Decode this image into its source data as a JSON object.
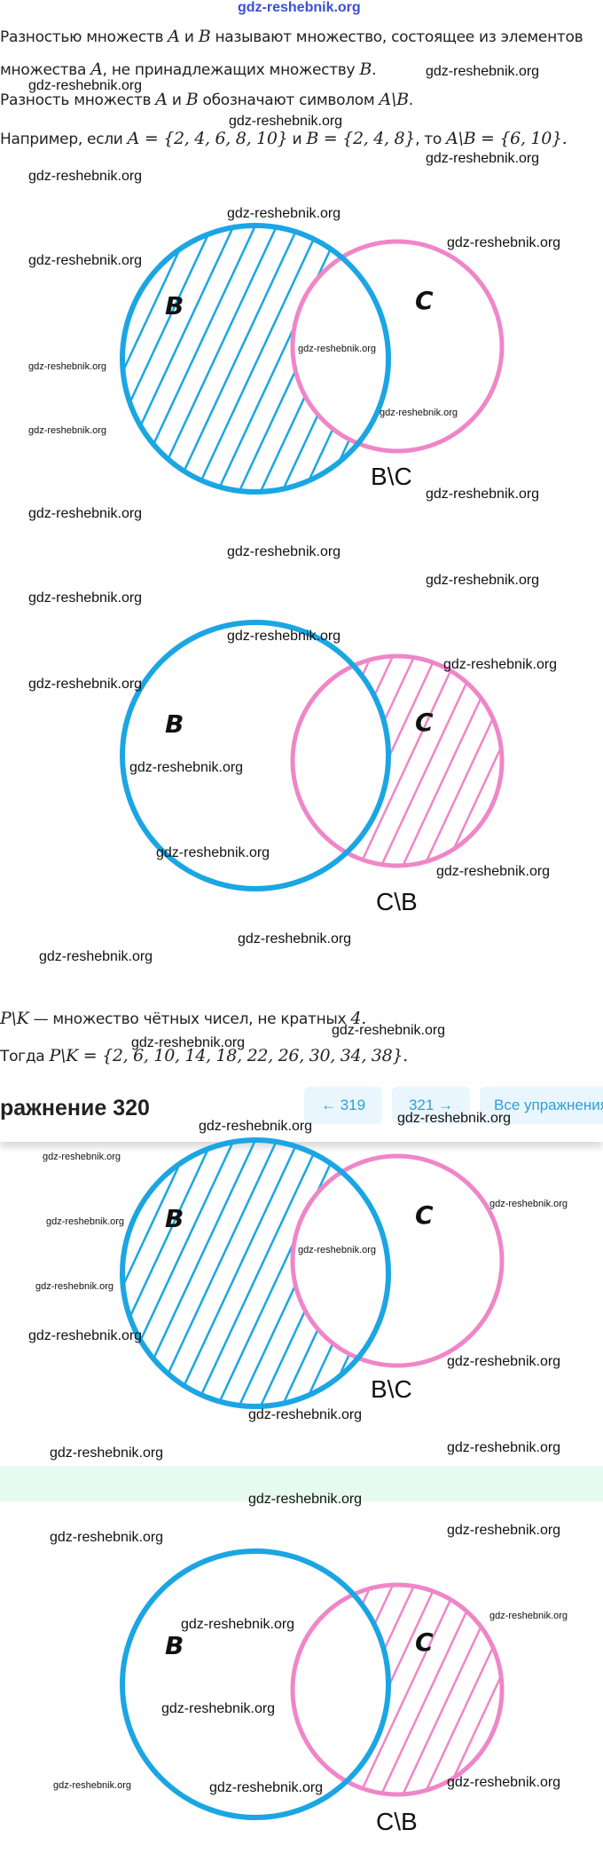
{
  "watermark": "gdz-reshebnik.org",
  "theory": {
    "line1_a": "Разностью множеств ",
    "A": "A",
    "and": " и ",
    "B": "B",
    "line1_b": " называют множество, состоящее из элементов",
    "line2_a": "множества ",
    "line2_b": ", не принадлежащих множеству ",
    "dot": ".",
    "line3_a": "Разность множеств ",
    "line3_b": " обозначают символом ",
    "AminusB": "A\\B",
    "line4_a": "Например, если ",
    "setA": "A = {2, 4, 6, 8, 10}",
    "setB": "B = {2, 4, 8}",
    "then": ", то ",
    "result": "A\\B = {6, 10}."
  },
  "diagrams": [
    {
      "left_label": "B",
      "right_label": "C",
      "caption": "B\\C",
      "shaded": "B-minus-C"
    },
    {
      "left_label": "B",
      "right_label": "C",
      "caption": "C\\B",
      "shaded": "C-minus-B"
    },
    {
      "left_label": "B",
      "right_label": "C",
      "caption": "B\\C",
      "shaded": "B-minus-C"
    },
    {
      "left_label": "B",
      "right_label": "C",
      "caption": "C\\B",
      "shaded": "C-minus-B"
    }
  ],
  "solution": {
    "pk": "P\\K",
    "pk_text": " — множество чётных чисел, не кратных ",
    "four": "4.",
    "then": "Тогда ",
    "pk_set": "P\\K = {2, 6, 10, 14, 18, 22, 26, 30, 34, 38}."
  },
  "exercise_header": {
    "title": "ражнение 320",
    "prev": "← 319",
    "next": "321 →",
    "all": "Все упражнения"
  },
  "colors": {
    "blue": "#1ba6e3",
    "pink": "#ef86c8",
    "band": "#e6fbef",
    "nav": "#2da0d8"
  }
}
